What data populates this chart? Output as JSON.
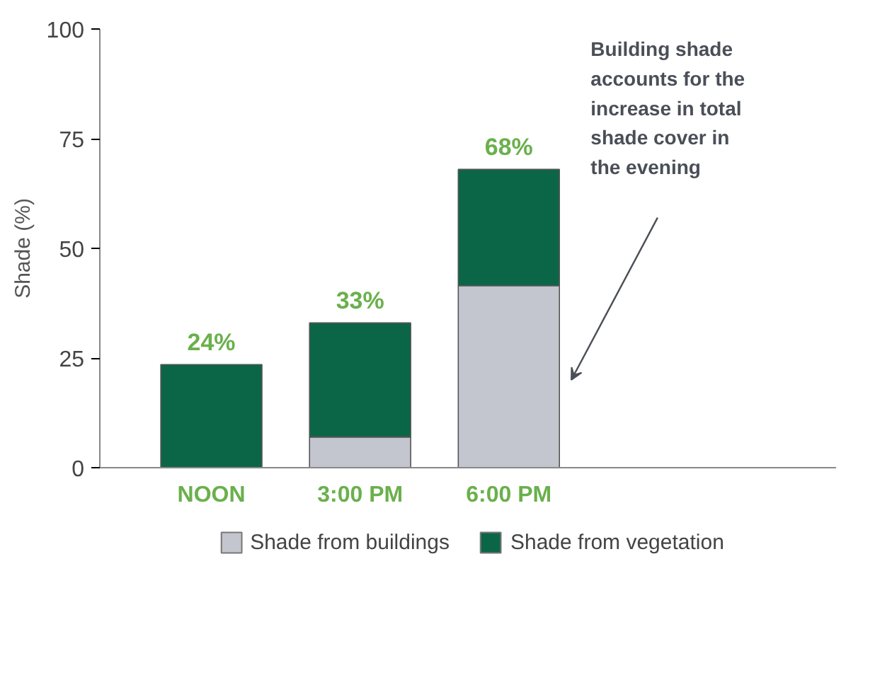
{
  "chart_data": {
    "type": "bar",
    "stacked": true,
    "ylabel": "Shade (%)",
    "categories": [
      "NOON",
      "3:00 PM",
      "6:00 PM"
    ],
    "series": [
      {
        "name": "Shade from buildings",
        "color": "#c3c6ce",
        "values": [
          null,
          7,
          41.5
        ]
      },
      {
        "name": "Shade from vegetation",
        "color": "#0b6647",
        "values": [
          23.5,
          26,
          26.5
        ]
      }
    ],
    "totals": [
      "24%",
      "33%",
      "68%"
    ],
    "ylim": [
      0,
      100
    ],
    "yticks": [
      0,
      25,
      50,
      75,
      100
    ],
    "grid": false,
    "legend": "bottom",
    "annotations": [
      "Building shade accounts for the increase in total shade cover in the evening"
    ]
  }
}
